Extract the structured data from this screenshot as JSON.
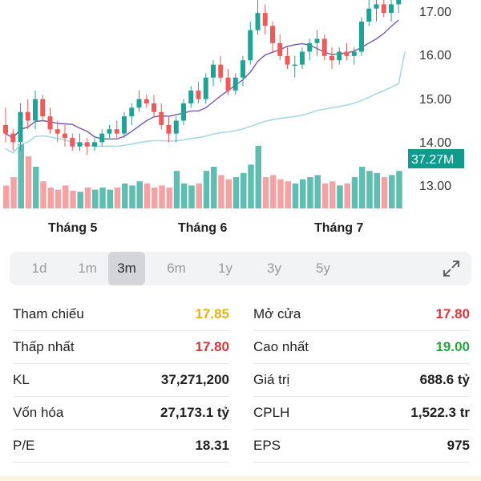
{
  "chart": {
    "price_ticks": [
      "17.00",
      "16.00",
      "15.00",
      "14.00",
      "13.00"
    ],
    "month_labels": [
      "Tháng 5",
      "Tháng 6",
      "Tháng 7"
    ],
    "volume_badge": "37.27M",
    "colors": {
      "up": "#20a397",
      "down": "#ea5b5b",
      "ma_short": "#7a56a8",
      "ma_long": "#a7d9e6",
      "vol_up": "#5fbdb1",
      "vol_down": "#f2a3a3",
      "badge": "#0f9b8e"
    }
  },
  "chart_data": {
    "type": "candlestick",
    "ylim": [
      12.5,
      17.3
    ],
    "x_labels": [
      "Tháng 5",
      "Tháng 6",
      "Tháng 7"
    ],
    "ohlc": [
      [
        14.4,
        14.8,
        14.0,
        14.2
      ],
      [
        14.2,
        14.3,
        13.8,
        14.0
      ],
      [
        14.0,
        14.9,
        13.8,
        14.7
      ],
      [
        14.7,
        15.0,
        14.3,
        14.5
      ],
      [
        14.5,
        15.2,
        14.3,
        15.0
      ],
      [
        15.0,
        15.1,
        14.5,
        14.6
      ],
      [
        14.6,
        14.8,
        14.2,
        14.3
      ],
      [
        14.3,
        14.5,
        14.0,
        14.2
      ],
      [
        14.2,
        14.4,
        13.9,
        14.1
      ],
      [
        14.1,
        14.2,
        13.8,
        13.9
      ],
      [
        13.9,
        14.2,
        13.8,
        14.0
      ],
      [
        14.0,
        14.1,
        13.7,
        13.9
      ],
      [
        13.9,
        14.1,
        13.8,
        14.0
      ],
      [
        14.0,
        14.3,
        13.9,
        14.2
      ],
      [
        14.2,
        14.4,
        14.1,
        14.3
      ],
      [
        14.3,
        14.5,
        14.1,
        14.2
      ],
      [
        14.2,
        14.7,
        14.1,
        14.6
      ],
      [
        14.6,
        14.9,
        14.4,
        14.8
      ],
      [
        14.8,
        15.2,
        14.7,
        15.0
      ],
      [
        15.0,
        15.1,
        14.8,
        14.9
      ],
      [
        14.9,
        15.1,
        14.6,
        14.7
      ],
      [
        14.7,
        14.9,
        14.3,
        14.4
      ],
      [
        14.4,
        14.6,
        14.0,
        14.2
      ],
      [
        14.2,
        14.6,
        14.0,
        14.5
      ],
      [
        14.5,
        15.0,
        14.4,
        14.9
      ],
      [
        14.9,
        15.3,
        14.8,
        15.2
      ],
      [
        15.2,
        15.4,
        14.9,
        15.0
      ],
      [
        15.0,
        15.6,
        14.9,
        15.5
      ],
      [
        15.5,
        15.9,
        15.3,
        15.8
      ],
      [
        15.8,
        16.0,
        15.4,
        15.5
      ],
      [
        15.5,
        15.7,
        15.1,
        15.2
      ],
      [
        15.2,
        15.6,
        15.1,
        15.5
      ],
      [
        15.5,
        16.0,
        15.3,
        15.9
      ],
      [
        15.9,
        16.8,
        15.8,
        16.6
      ],
      [
        16.6,
        17.3,
        16.5,
        17.0
      ],
      [
        17.0,
        17.2,
        16.5,
        16.7
      ],
      [
        16.7,
        16.8,
        16.1,
        16.3
      ],
      [
        16.3,
        16.5,
        15.9,
        16.0
      ],
      [
        16.0,
        16.2,
        15.7,
        15.8
      ],
      [
        15.8,
        16.0,
        15.5,
        15.8
      ],
      [
        15.8,
        16.2,
        15.7,
        16.1
      ],
      [
        16.1,
        16.4,
        15.9,
        16.3
      ],
      [
        16.3,
        16.6,
        16.0,
        16.4
      ],
      [
        16.4,
        16.5,
        15.9,
        16.0
      ],
      [
        16.0,
        16.2,
        15.7,
        15.9
      ],
      [
        15.9,
        16.2,
        15.8,
        16.1
      ],
      [
        16.1,
        16.3,
        15.9,
        16.0
      ],
      [
        16.0,
        16.2,
        15.8,
        16.1
      ],
      [
        16.1,
        16.9,
        16.0,
        16.8
      ],
      [
        16.8,
        17.3,
        16.7,
        17.1
      ],
      [
        17.1,
        17.3,
        16.8,
        17.2
      ],
      [
        17.2,
        17.3,
        16.9,
        17.0
      ],
      [
        17.0,
        17.3,
        16.8,
        17.2
      ],
      [
        17.2,
        17.3,
        17.0,
        17.3
      ]
    ],
    "volume": [
      22,
      30,
      62,
      50,
      40,
      26,
      20,
      18,
      22,
      17,
      16,
      20,
      18,
      20,
      18,
      20,
      24,
      22,
      26,
      24,
      20,
      22,
      20,
      36,
      24,
      22,
      24,
      36,
      40,
      32,
      28,
      30,
      34,
      42,
      60,
      30,
      32,
      28,
      26,
      24,
      28,
      30,
      32,
      24,
      26,
      22,
      24,
      30,
      40,
      36,
      34,
      30,
      32,
      36
    ],
    "ylabel": ""
  },
  "tabs": [
    "1d",
    "1m",
    "3m",
    "6m",
    "1y",
    "3y",
    "5y"
  ],
  "active_tab": "3m",
  "stats": {
    "left": [
      {
        "label": "Tham chiếu",
        "value": "17.85",
        "color": "#e5b10a"
      },
      {
        "label": "Thấp nhất",
        "value": "17.80",
        "color": "#d8343d"
      },
      {
        "label": "KL",
        "value": "37,271,200",
        "color": "#1f1f1f"
      },
      {
        "label": "Vốn hóa",
        "value": "27,173.1 tỷ",
        "color": "#1f1f1f"
      },
      {
        "label": "P/E",
        "value": "18.31",
        "color": "#1f1f1f"
      }
    ],
    "right": [
      {
        "label": "Mở cửa",
        "value": "17.80",
        "color": "#d8343d"
      },
      {
        "label": "Cao nhất",
        "value": "19.00",
        "color": "#2aa340"
      },
      {
        "label": "Giá trị",
        "value": "688.6 tỷ",
        "color": "#1f1f1f"
      },
      {
        "label": "CPLH",
        "value": "1,522.3 tr",
        "color": "#1f1f1f"
      },
      {
        "label": "EPS",
        "value": "975",
        "color": "#1f1f1f"
      }
    ]
  }
}
